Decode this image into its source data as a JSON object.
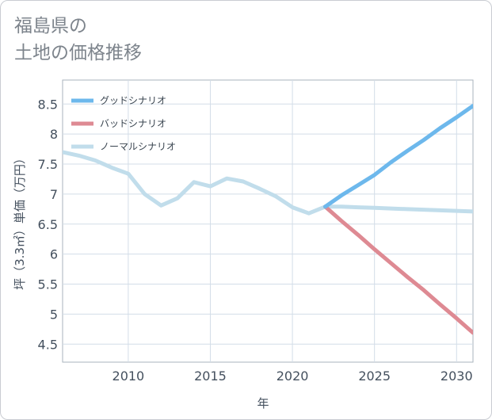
{
  "title_lines": [
    "福島県の",
    "土地の価格推移"
  ],
  "chart_data": {
    "type": "line",
    "title": "福島県の土地の価格推移",
    "xlabel": "年",
    "ylabel": "坪（3.3㎡）単価（万円）",
    "xlim": [
      2006,
      2031
    ],
    "ylim": [
      4.2,
      8.9
    ],
    "x_ticks": [
      2010,
      2015,
      2020,
      2025,
      2030
    ],
    "y_ticks": [
      4.5,
      5,
      5.5,
      6,
      6.5,
      7,
      7.5,
      8,
      8.5
    ],
    "grid": true,
    "legend_position": "top-left",
    "series": [
      {
        "name": "グッドシナリオ",
        "color": "#6db8ec",
        "x": [
          2022,
          2023,
          2024,
          2025,
          2026,
          2027,
          2028,
          2029,
          2030,
          2031
        ],
        "values": [
          6.79,
          6.98,
          7.15,
          7.32,
          7.53,
          7.72,
          7.9,
          8.1,
          8.28,
          8.47
        ]
      },
      {
        "name": "バッドシナリオ",
        "color": "#de8a93",
        "x": [
          2022,
          2023,
          2024,
          2025,
          2026,
          2027,
          2028,
          2029,
          2030,
          2031
        ],
        "values": [
          6.79,
          6.55,
          6.32,
          6.08,
          5.85,
          5.62,
          5.4,
          5.16,
          4.93,
          4.69
        ]
      },
      {
        "name": "ノーマルシナリオ",
        "color": "#c1ddeb",
        "x": [
          2006,
          2007,
          2008,
          2009,
          2010,
          2011,
          2012,
          2013,
          2014,
          2015,
          2016,
          2017,
          2018,
          2019,
          2020,
          2021,
          2022,
          2023,
          2024,
          2025,
          2026,
          2027,
          2028,
          2029,
          2030,
          2031
        ],
        "values": [
          7.7,
          7.64,
          7.56,
          7.44,
          7.34,
          7.0,
          6.81,
          6.93,
          7.2,
          7.13,
          7.26,
          7.21,
          7.09,
          6.96,
          6.78,
          6.68,
          6.79,
          6.79,
          6.78,
          6.77,
          6.76,
          6.75,
          6.74,
          6.73,
          6.72,
          6.71
        ]
      }
    ]
  }
}
